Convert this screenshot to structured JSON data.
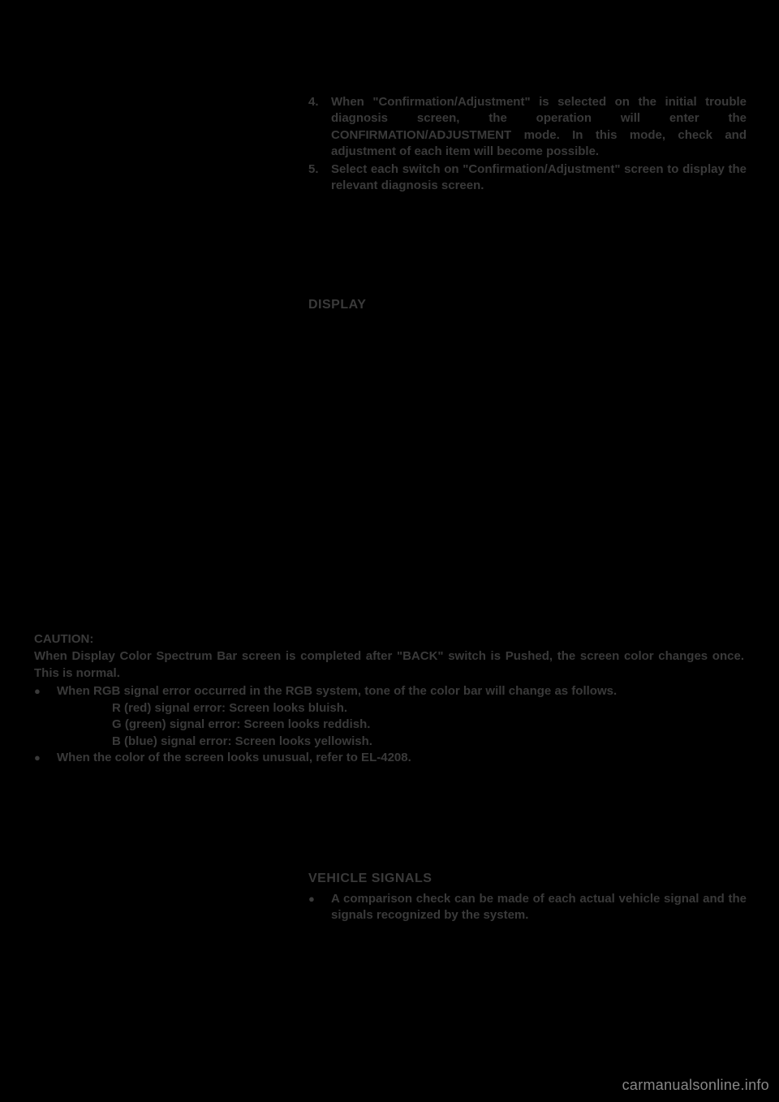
{
  "steps": {
    "item4": {
      "num": "4.",
      "text": "When \"Confirmation/Adjustment\" is selected on the initial trouble diagnosis screen, the operation will enter the CONFIRMATION/ADJUSTMENT mode. In this mode, check and adjustment of each item will become possible."
    },
    "item5": {
      "num": "5.",
      "text": "Select each switch on \"Confirmation/Adjustment\" screen to display the relevant diagnosis screen."
    }
  },
  "displaySection": {
    "title": "DISPLAY"
  },
  "caution": {
    "header": "CAUTION:",
    "text": "When Display Color Spectrum Bar screen is completed after \"BACK\" switch is Pushed, the screen color changes once. This is normal.",
    "bullet1": "When RGB signal error occurred in the RGB system, tone of the color bar will change as follows.",
    "line_r": "R (red) signal error: Screen looks bluish.",
    "line_g": "G (green) signal error: Screen looks reddish.",
    "line_b": "B (blue) signal error: Screen looks yellowish.",
    "bullet2": "When the color of the screen looks unusual, refer to EL-4208."
  },
  "vehicleSignals": {
    "title": "VEHICLE SIGNALS",
    "bullet": "A comparison check can be made of each actual vehicle signal and the signals recognized by the system."
  },
  "watermark": "carmanualsonline.info",
  "colors": {
    "background": "#000000",
    "text": "#3a3a3a",
    "watermark": "#888888"
  }
}
